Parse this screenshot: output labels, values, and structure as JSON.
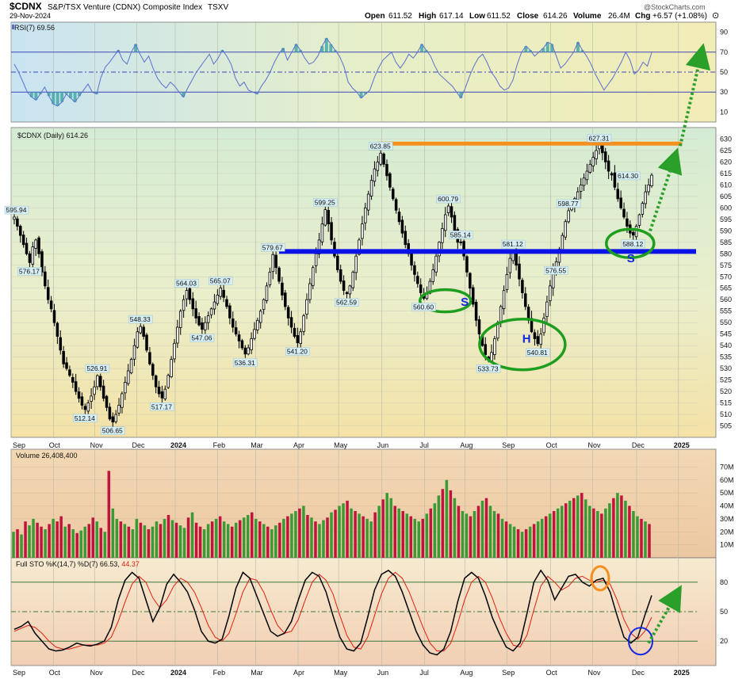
{
  "header": {
    "symbol": "$CDNX",
    "name": "S&P/TSX Venture (CDNX) Composite Index",
    "exchange": "TSXV",
    "date": "29-Nov-2024",
    "open_label": "Open",
    "open": "611.52",
    "high_label": "High",
    "high": "617.14",
    "low_label": "Low",
    "low": "611.52",
    "close_label": "Close",
    "close": "614.26",
    "volume_label": "Volume",
    "volume": "26.4M",
    "chg_label": "Chg",
    "chg": "+6.57 (+1.08%)",
    "watermark": "@StockCharts.com"
  },
  "colors": {
    "up": "#3a9a35",
    "down": "#c0143c",
    "rsi_line": "#5b6fd0",
    "rsi_fill": "#3aa5a5",
    "blue_line": "#0a14e6",
    "orange_line": "#f5901e",
    "green_ellipse": "#1e9e1e",
    "stoch_k": "#000000",
    "stoch_d": "#e02010"
  },
  "chart_data": [
    {
      "type": "line",
      "panel": "rsi",
      "legend": "RSI(7) 69.56",
      "ylim": [
        0,
        100
      ],
      "yticks": [
        10,
        30,
        50,
        70,
        90
      ],
      "levels": [
        30,
        50,
        70
      ],
      "values": [
        58,
        50,
        40,
        30,
        25,
        22,
        28,
        35,
        26,
        18,
        16,
        20,
        28,
        24,
        20,
        26,
        32,
        38,
        30,
        28,
        45,
        55,
        60,
        66,
        72,
        62,
        58,
        70,
        78,
        68,
        60,
        66,
        54,
        44,
        38,
        34,
        40,
        36,
        30,
        25,
        34,
        42,
        50,
        56,
        62,
        68,
        58,
        64,
        72,
        66,
        58,
        44,
        36,
        40,
        32,
        30,
        28,
        36,
        42,
        50,
        60,
        68,
        74,
        62,
        70,
        78,
        72,
        64,
        58,
        60,
        66,
        76,
        84,
        78,
        72,
        66,
        56,
        40,
        34,
        30,
        24,
        28,
        32,
        44,
        54,
        62,
        66,
        70,
        60,
        54,
        60,
        68,
        64,
        70,
        78,
        72,
        66,
        56,
        48,
        44,
        40,
        36,
        30,
        24,
        34,
        46,
        56,
        64,
        68,
        60,
        50,
        44,
        36,
        32,
        34,
        42,
        58,
        70,
        76,
        72,
        66,
        70,
        74,
        80,
        78,
        66,
        54,
        58,
        64,
        70,
        80,
        72,
        66,
        58,
        48,
        40,
        32,
        38,
        44,
        52,
        60,
        70,
        62,
        48,
        52,
        60,
        56,
        69.56
      ]
    },
    {
      "type": "candlestick",
      "panel": "price",
      "legend": "$CDNX (Daily) 614.26",
      "ylim": [
        500,
        635
      ],
      "yticks": [
        505,
        510,
        515,
        520,
        525,
        530,
        535,
        540,
        545,
        550,
        555,
        560,
        565,
        570,
        575,
        580,
        585,
        590,
        595,
        600,
        605,
        610,
        615,
        620,
        625,
        630
      ],
      "x_labels": [
        "Sep",
        "Oct",
        "Nov",
        "Dec",
        "2024",
        "Feb",
        "Mar",
        "Apr",
        "May",
        "Jun",
        "Jul",
        "Aug",
        "Sep",
        "Oct",
        "Nov",
        "Dec",
        "2025"
      ],
      "anchors": [
        596,
        592,
        588,
        584,
        580,
        576.17,
        583,
        586,
        580,
        572,
        566,
        560,
        556,
        550,
        544,
        538,
        532,
        530,
        527,
        524,
        520,
        517,
        514,
        512.14,
        515,
        518,
        522,
        526.91,
        522,
        517,
        513,
        508,
        506.65,
        510,
        514,
        519,
        524,
        529,
        534,
        540,
        546,
        548.33,
        544,
        538,
        532,
        527,
        522,
        519,
        517.17,
        521,
        527,
        534,
        541,
        548,
        555,
        560,
        564.03,
        560,
        556,
        552,
        549,
        547.06,
        550,
        553,
        556,
        559,
        562,
        565.07,
        561,
        557,
        552,
        548,
        545,
        542,
        539,
        536.31,
        539,
        543,
        547,
        551,
        555,
        560,
        566,
        572,
        579.67,
        574,
        568,
        562,
        557,
        552,
        548,
        544,
        541.2,
        546,
        553,
        560,
        567,
        574,
        580,
        586,
        593,
        599.25,
        593,
        586,
        579,
        573,
        568,
        564,
        562.59,
        566,
        572,
        579,
        586,
        593,
        600,
        606,
        612,
        617,
        620,
        623.85,
        619,
        614,
        609,
        604,
        599,
        594,
        589,
        584,
        580,
        575,
        571,
        567,
        563,
        560.6,
        563,
        568,
        573,
        579,
        585,
        591,
        597,
        600.79,
        596,
        590,
        585,
        585.14,
        579,
        572,
        565,
        558,
        551,
        545,
        540,
        536,
        533.73,
        537,
        543,
        550,
        557,
        564,
        571,
        578,
        581.12,
        575,
        569,
        563,
        557,
        551,
        546,
        543,
        540.81,
        545,
        552,
        559,
        566,
        573,
        576.55,
        582,
        588,
        594,
        598.77,
        601,
        604,
        607,
        610,
        613,
        616,
        619,
        622,
        625,
        627.31,
        624,
        620,
        616,
        614.3,
        609,
        604,
        600,
        596,
        592,
        589,
        588.12,
        592,
        597,
        602,
        607,
        610,
        614.26
      ],
      "labels": [
        {
          "text": "595.94",
          "value": 595.94,
          "pos": "above"
        },
        {
          "text": "576.17",
          "value": 576.17,
          "pos": "below"
        },
        {
          "text": "526.91",
          "value": 526.91,
          "pos": "above"
        },
        {
          "text": "512.14",
          "value": 512.14,
          "pos": "below"
        },
        {
          "text": "506.65",
          "value": 506.65,
          "pos": "below"
        },
        {
          "text": "548.33",
          "value": 548.33,
          "pos": "above"
        },
        {
          "text": "517.17",
          "value": 517.17,
          "pos": "below"
        },
        {
          "text": "564.03",
          "value": 564.03,
          "pos": "above"
        },
        {
          "text": "547.06",
          "value": 547.06,
          "pos": "below"
        },
        {
          "text": "565.07",
          "value": 565.07,
          "pos": "above"
        },
        {
          "text": "536.31",
          "value": 536.31,
          "pos": "below"
        },
        {
          "text": "579.67",
          "value": 579.67,
          "pos": "above"
        },
        {
          "text": "541.20",
          "value": 541.2,
          "pos": "below"
        },
        {
          "text": "599.25",
          "value": 599.25,
          "pos": "above"
        },
        {
          "text": "562.59",
          "value": 562.59,
          "pos": "below"
        },
        {
          "text": "623.85",
          "value": 623.85,
          "pos": "above"
        },
        {
          "text": "560.60",
          "value": 560.6,
          "pos": "below"
        },
        {
          "text": "600.79",
          "value": 600.79,
          "pos": "above"
        },
        {
          "text": "585.14",
          "value": 585.14,
          "pos": "above"
        },
        {
          "text": "533.73",
          "value": 533.73,
          "pos": "below"
        },
        {
          "text": "581.12",
          "value": 581.12,
          "pos": "above"
        },
        {
          "text": "540.81",
          "value": 540.81,
          "pos": "below"
        },
        {
          "text": "576.55",
          "value": 576.55,
          "pos": "below"
        },
        {
          "text": "598.77",
          "value": 598.77,
          "pos": "above"
        },
        {
          "text": "627.31",
          "value": 627.31,
          "pos": "above"
        },
        {
          "text": "614.30",
          "value": 614.3,
          "pos": "right"
        },
        {
          "text": "588.12",
          "value": 588.12,
          "pos": "below"
        }
      ],
      "resistance": 628,
      "neckline": 581,
      "pattern_labels": [
        {
          "text": "S",
          "value": 559
        },
        {
          "text": "H",
          "value": 543
        },
        {
          "text": "S",
          "value": 578
        }
      ]
    },
    {
      "type": "bar",
      "panel": "volume",
      "legend": "Volume 26,408,400",
      "unit": "M",
      "ylim": [
        0,
        80
      ],
      "yticks": [
        10,
        20,
        30,
        40,
        50,
        60,
        70
      ],
      "ytick_labels": [
        "10M",
        "20M",
        "30M",
        "40M",
        "50M",
        "60M",
        "70M"
      ],
      "values": [
        20,
        22,
        18,
        28,
        25,
        30,
        27,
        24,
        22,
        26,
        30,
        28,
        32,
        24,
        26,
        22,
        19,
        21,
        24,
        26,
        31,
        28,
        23,
        20,
        67,
        38,
        30,
        28,
        26,
        24,
        22,
        30,
        27,
        25,
        22,
        24,
        28,
        26,
        30,
        33,
        29,
        27,
        25,
        23,
        31,
        35,
        27,
        24,
        22,
        26,
        28,
        30,
        32,
        28,
        26,
        24,
        27,
        29,
        31,
        33,
        35,
        30,
        28,
        26,
        24,
        22,
        25,
        27,
        30,
        32,
        34,
        36,
        38,
        40,
        33,
        31,
        28,
        26,
        29,
        31,
        35,
        37,
        40,
        42,
        44,
        38,
        36,
        34,
        32,
        30,
        28,
        35,
        40,
        45,
        50,
        46,
        40,
        38,
        36,
        34,
        32,
        30,
        28,
        30,
        34,
        38,
        42,
        48,
        53,
        60,
        52,
        46,
        40,
        36,
        34,
        32,
        36,
        40,
        44,
        46,
        40,
        36,
        34,
        30,
        28,
        26,
        24,
        22,
        20,
        22,
        24,
        26,
        28,
        30,
        32,
        34,
        36,
        38,
        40,
        42,
        44,
        46,
        48,
        50,
        45,
        40,
        38,
        36,
        34,
        38,
        42,
        46,
        50,
        48,
        44,
        40,
        36,
        32,
        30,
        28,
        26
      ],
      "up": [
        1,
        0,
        1,
        0,
        1,
        1,
        0,
        0,
        1,
        0,
        1,
        0,
        0,
        1,
        0,
        1,
        0,
        1,
        1,
        0,
        0,
        1,
        0,
        1,
        0,
        1,
        1,
        0,
        1,
        0,
        1,
        1,
        0,
        1,
        0,
        1,
        1,
        0,
        1,
        0,
        1,
        0,
        1,
        1,
        0,
        1,
        0,
        0,
        1,
        1,
        0,
        1,
        0,
        1,
        1,
        0,
        1,
        0,
        1,
        1,
        0,
        1,
        0,
        1,
        0,
        1,
        1,
        0,
        1,
        0,
        1,
        1,
        0,
        1,
        0,
        1,
        0,
        1,
        1,
        0,
        1,
        0,
        1,
        1,
        0,
        1,
        0,
        1,
        0,
        1,
        1,
        0,
        1,
        0,
        1,
        1,
        0,
        1,
        0,
        1,
        0,
        1,
        1,
        0,
        1,
        0,
        1,
        1,
        0,
        1,
        0,
        1,
        0,
        1,
        1,
        0,
        1,
        0,
        1,
        0,
        1,
        1,
        0,
        1,
        0,
        1,
        1,
        0,
        1,
        0,
        1,
        0,
        1,
        1,
        0,
        1,
        0,
        1,
        1,
        0,
        1,
        0,
        1,
        0,
        1,
        1,
        0,
        1,
        0,
        1,
        1,
        0,
        1,
        0,
        1,
        0,
        1,
        1,
        0,
        1,
        0
      ]
    },
    {
      "type": "line",
      "panel": "stochastic",
      "legend_label": "Full STO %K(14,7) %D(7)",
      "k_last": "66.53",
      "d_last": "44.37",
      "ylim": [
        0,
        100
      ],
      "yticks": [
        20,
        50,
        80
      ],
      "levels": [
        20,
        50,
        80
      ],
      "x_labels": [
        "Sep",
        "Oct",
        "Nov",
        "Dec",
        "2024",
        "Feb",
        "Mar",
        "Apr",
        "May",
        "Jun",
        "Jul",
        "Aug",
        "Sep",
        "Oct",
        "Nov",
        "Dec",
        "2025"
      ],
      "k_values": [
        32,
        35,
        40,
        28,
        20,
        12,
        10,
        11,
        14,
        18,
        16,
        15,
        17,
        20,
        34,
        62,
        82,
        90,
        84,
        62,
        40,
        54,
        78,
        88,
        80,
        70,
        52,
        30,
        20,
        18,
        22,
        46,
        74,
        90,
        84,
        66,
        48,
        30,
        25,
        28,
        40,
        62,
        82,
        90,
        86,
        70,
        46,
        24,
        12,
        10,
        18,
        44,
        72,
        88,
        92,
        86,
        70,
        50,
        30,
        16,
        8,
        6,
        12,
        30,
        60,
        84,
        90,
        84,
        66,
        44,
        28,
        14,
        10,
        18,
        48,
        80,
        92,
        82,
        62,
        74,
        86,
        88,
        80,
        76,
        82,
        84,
        70,
        46,
        24,
        18,
        24,
        46,
        66.53
      ],
      "d_values": [
        30,
        33,
        36,
        34,
        28,
        20,
        14,
        12,
        12,
        14,
        16,
        16,
        16,
        18,
        24,
        40,
        60,
        78,
        86,
        80,
        64,
        54,
        62,
        76,
        84,
        80,
        70,
        54,
        36,
        24,
        20,
        28,
        48,
        70,
        84,
        82,
        70,
        52,
        36,
        28,
        30,
        42,
        62,
        80,
        88,
        82,
        68,
        46,
        26,
        14,
        12,
        24,
        46,
        68,
        84,
        90,
        84,
        70,
        52,
        34,
        18,
        10,
        10,
        18,
        38,
        62,
        80,
        86,
        80,
        64,
        44,
        28,
        16,
        14,
        26,
        52,
        76,
        86,
        80,
        72,
        76,
        84,
        86,
        82,
        80,
        82,
        78,
        62,
        42,
        28,
        22,
        30,
        44.37
      ]
    }
  ],
  "annotations": {
    "tick_interval_note": ""
  }
}
